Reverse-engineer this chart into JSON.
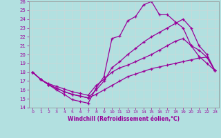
{
  "xlabel": "Windchill (Refroidissement éolien,°C)",
  "background_color": "#b2e0e0",
  "grid_color": "#c8d8d8",
  "line_color": "#990099",
  "xlim": [
    -0.5,
    23.5
  ],
  "ylim": [
    14,
    26
  ],
  "yticks": [
    14,
    15,
    16,
    17,
    18,
    19,
    20,
    21,
    22,
    23,
    24,
    25,
    26
  ],
  "xticks": [
    0,
    1,
    2,
    3,
    4,
    5,
    6,
    7,
    8,
    9,
    10,
    11,
    12,
    13,
    14,
    15,
    16,
    17,
    18,
    19,
    20,
    21,
    22,
    23
  ],
  "lines": [
    {
      "x": [
        0,
        1,
        2,
        3,
        4,
        5,
        6,
        7,
        8,
        9,
        10,
        11,
        12,
        13,
        14,
        15,
        16,
        17,
        18,
        19,
        20,
        21,
        22,
        23
      ],
      "y": [
        18.0,
        17.2,
        16.6,
        16.0,
        15.5,
        14.9,
        14.7,
        14.5,
        16.2,
        17.5,
        21.8,
        22.1,
        23.8,
        24.3,
        25.6,
        26.0,
        24.5,
        24.5,
        23.7,
        23.0,
        21.0,
        19.8,
        19.0,
        18.2
      ]
    },
    {
      "x": [
        0,
        1,
        2,
        3,
        4,
        5,
        6,
        7,
        8,
        9,
        10,
        11,
        12,
        13,
        14,
        15,
        16,
        17,
        18,
        19,
        20,
        21,
        22,
        23
      ],
      "y": [
        18.0,
        17.2,
        16.6,
        16.2,
        15.8,
        15.5,
        15.3,
        15.1,
        15.5,
        16.0,
        16.5,
        17.0,
        17.5,
        17.8,
        18.1,
        18.4,
        18.6,
        18.8,
        19.0,
        19.2,
        19.4,
        19.6,
        19.7,
        18.2
      ]
    },
    {
      "x": [
        0,
        1,
        2,
        3,
        4,
        5,
        6,
        7,
        8,
        9,
        10,
        11,
        12,
        13,
        14,
        15,
        16,
        17,
        18,
        19,
        20,
        21,
        22,
        23
      ],
      "y": [
        18.0,
        17.2,
        16.6,
        16.2,
        15.8,
        15.5,
        15.3,
        15.1,
        16.0,
        17.0,
        18.5,
        19.2,
        20.0,
        20.7,
        21.4,
        22.0,
        22.5,
        23.0,
        23.5,
        24.0,
        23.0,
        21.0,
        20.0,
        18.2
      ]
    },
    {
      "x": [
        0,
        1,
        2,
        3,
        4,
        5,
        6,
        7,
        8,
        9,
        10,
        11,
        12,
        13,
        14,
        15,
        16,
        17,
        18,
        19,
        20,
        21,
        22,
        23
      ],
      "y": [
        18.0,
        17.2,
        16.7,
        16.4,
        16.1,
        15.8,
        15.6,
        15.4,
        16.5,
        17.2,
        18.0,
        18.5,
        18.8,
        19.2,
        19.6,
        20.0,
        20.5,
        21.0,
        21.5,
        21.8,
        21.0,
        20.5,
        19.7,
        18.2
      ]
    }
  ]
}
